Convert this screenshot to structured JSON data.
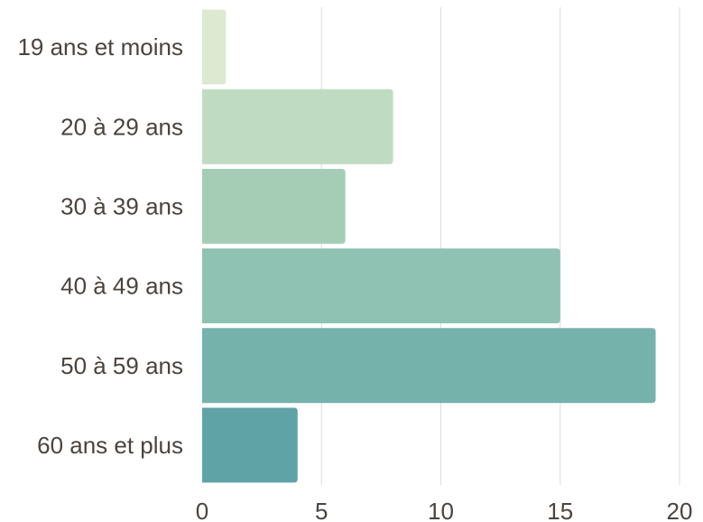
{
  "chart_data": {
    "type": "bar",
    "orientation": "horizontal",
    "title": "",
    "xlabel": "",
    "ylabel": "",
    "categories": [
      "19 ans et moins",
      "20 à 29 ans",
      "30 à 39 ans",
      "40 à 49 ans",
      "50 à 59 ans",
      "60 ans et plus"
    ],
    "values": [
      1,
      8,
      6,
      15,
      19,
      4
    ],
    "colors": [
      "#dde9d1",
      "#bfdcc2",
      "#a5cdb6",
      "#8fc2b2",
      "#76b2ac",
      "#5fa3a7"
    ],
    "xlim": [
      0,
      20
    ],
    "xticks": [
      0,
      5,
      10,
      15,
      20
    ],
    "grid": true,
    "legend": "none"
  }
}
